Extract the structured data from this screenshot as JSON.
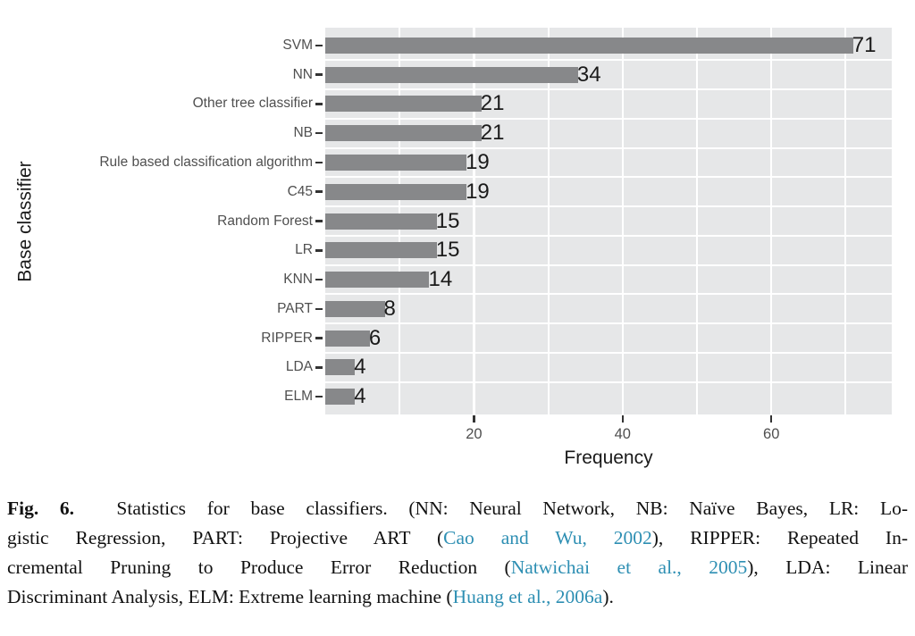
{
  "chart_data": {
    "type": "bar",
    "orientation": "horizontal",
    "title": "",
    "xlabel": "Frequency",
    "ylabel": "Base classifier",
    "categories": [
      "SVM",
      "NN",
      "Other tree classifier",
      "NB",
      "Rule based classification algorithm",
      "C45",
      "Random Forest",
      "LR",
      "KNN",
      "PART",
      "RIPPER",
      "LDA",
      "ELM"
    ],
    "values": [
      71,
      34,
      21,
      21,
      19,
      19,
      15,
      15,
      14,
      8,
      6,
      4,
      4
    ],
    "value_labels": true,
    "xlim": [
      0,
      76.2
    ],
    "x_major_ticks": [
      20,
      40,
      60
    ],
    "x_minor_ticks": [
      10,
      30,
      50,
      70
    ],
    "grid": true,
    "legend": "none",
    "bar_color": "#87888A",
    "panel_background": "#E6E7E8",
    "gridline_color": "#ffffff",
    "axis_text_color": "#4F4F4F",
    "tick_mark_color": "#333333"
  },
  "caption": {
    "lines": [
      {
        "flush": true,
        "segments": [
          {
            "text": "Fig. 6.",
            "bold": true
          },
          {
            "text": "  Statistics for base classifiers. (NN: Neural Network, NB: Naïve Bayes, LR: Lo-"
          }
        ]
      },
      {
        "flush": true,
        "segments": [
          {
            "text": "gistic Regression, PART: Projective ART ("
          },
          {
            "text": "Cao and Wu, 2002",
            "link": true
          },
          {
            "text": "), RIPPER: Repeated In-"
          }
        ]
      },
      {
        "flush": true,
        "segments": [
          {
            "text": "cremental Pruning to Produce Error Reduction ("
          },
          {
            "text": "Natwichai et al., 2005",
            "link": true
          },
          {
            "text": "), LDA: Linear"
          }
        ]
      },
      {
        "flush": false,
        "segments": [
          {
            "text": "Discriminant Analysis, ELM: Extreme learning machine ("
          },
          {
            "text": "Huang et al., 2006a",
            "link": true
          },
          {
            "text": ")."
          }
        ]
      }
    ]
  }
}
